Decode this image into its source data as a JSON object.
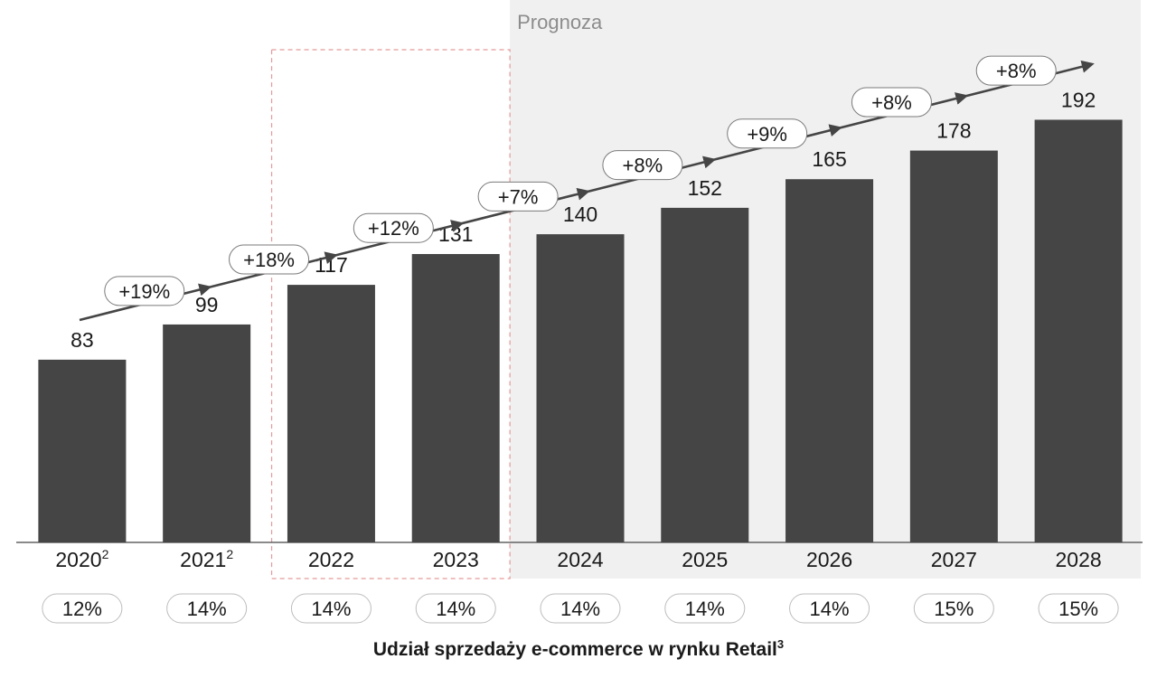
{
  "chart_data": {
    "type": "bar",
    "categories": [
      "2020",
      "2021",
      "2022",
      "2023",
      "2024",
      "2025",
      "2026",
      "2027",
      "2028"
    ],
    "category_superscripts": [
      "2",
      "2",
      "",
      "",
      "",
      "",
      "",
      "",
      ""
    ],
    "values": [
      83,
      99,
      117,
      131,
      140,
      152,
      165,
      178,
      192
    ],
    "growth_labels": [
      "+19%",
      "+18%",
      "+12%",
      "+7%",
      "+8%",
      "+9%",
      "+8%",
      "+8%"
    ],
    "share_labels": [
      "12%",
      "14%",
      "14%",
      "14%",
      "14%",
      "14%",
      "14%",
      "15%",
      "15%"
    ],
    "forecast": {
      "label": "Prognoza",
      "from_index": 4,
      "to_index": 8
    },
    "highlight": {
      "from_index": 2,
      "to_index": 3
    },
    "ylim": [
      0,
      250
    ],
    "grid": false,
    "colors": {
      "bar": "#454545",
      "forecast_bg": "#f0f0f0",
      "forecast_label": "#8c8c8c",
      "highlight_border": "#e59a9a",
      "arrow": "#454545",
      "pill_border": "#7a7a7a",
      "axis": "#454545"
    }
  },
  "footer": {
    "title": "Udział sprzedaży e-commerce w rynku Retail",
    "title_superscript": "3"
  }
}
